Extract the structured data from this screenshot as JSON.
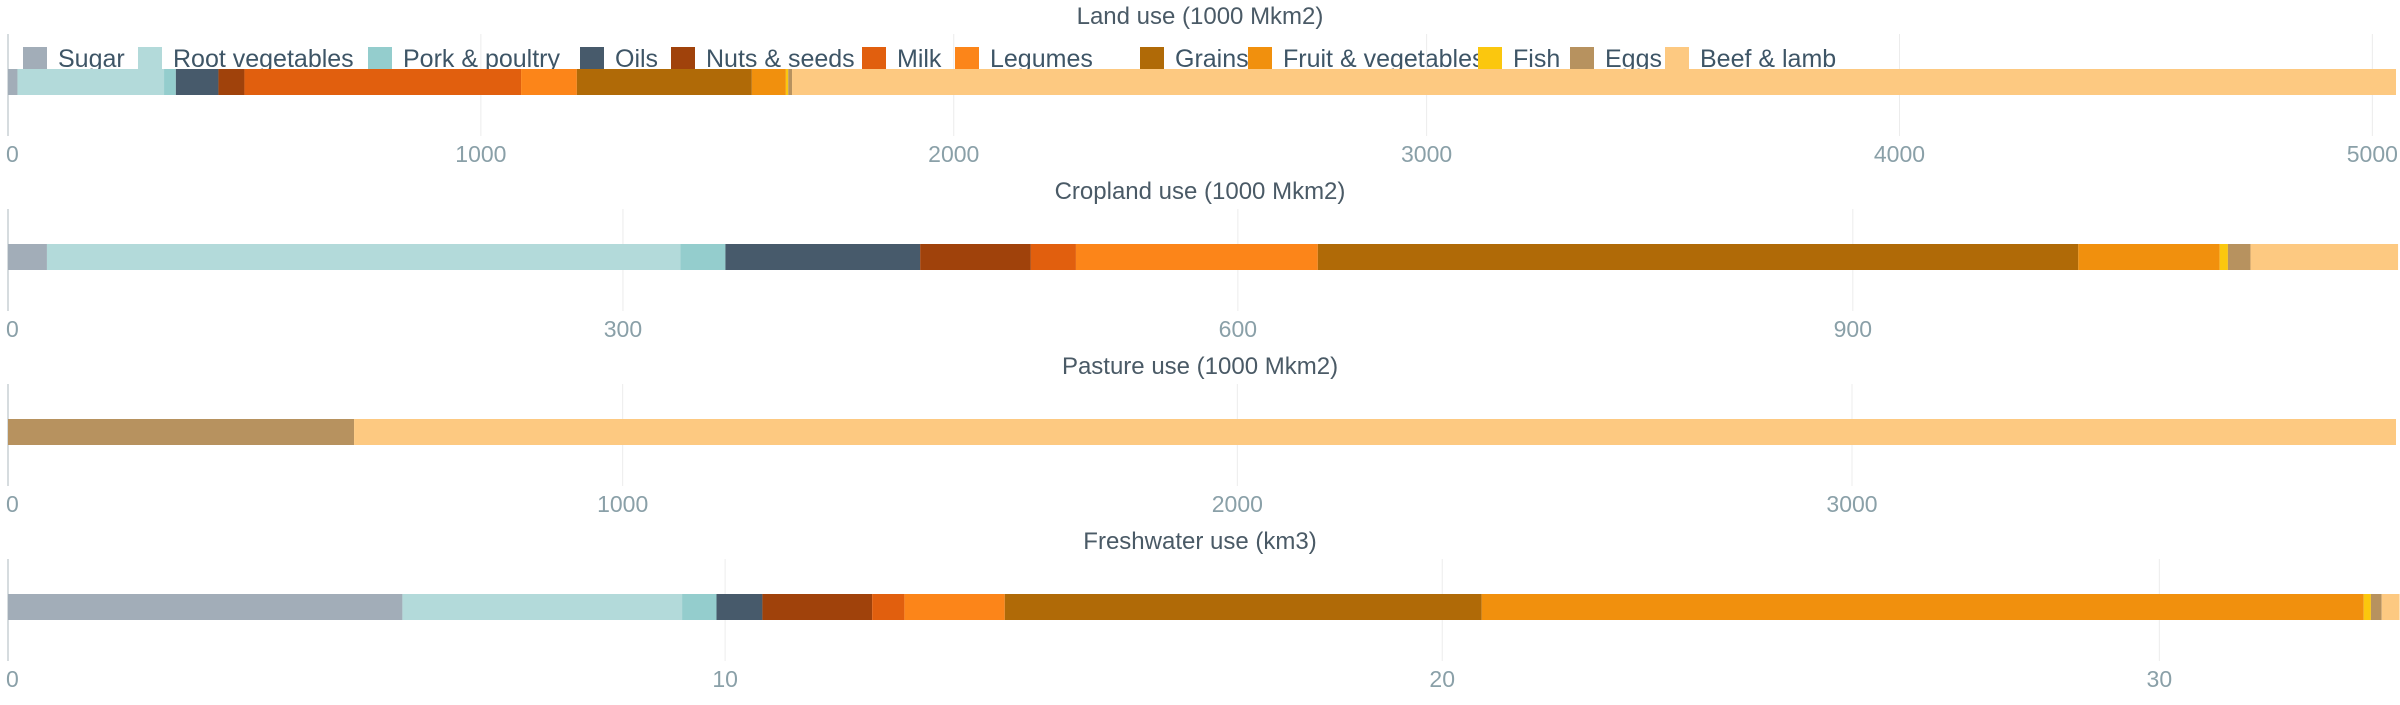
{
  "chart_data": {
    "type": "bar",
    "orientation": "horizontal",
    "stacked": true,
    "legend": {
      "placement": "top",
      "items": [
        {
          "name": "Sugar",
          "color": "#a2adb8"
        },
        {
          "name": "Root vegetables",
          "color": "#b3dada"
        },
        {
          "name": "Pork & poultry",
          "color": "#94cdcd"
        },
        {
          "name": "Oils",
          "color": "#475a6b"
        },
        {
          "name": "Nuts & seeds",
          "color": "#a0420b"
        },
        {
          "name": "Milk",
          "color": "#e15f0e"
        },
        {
          "name": "Legumes",
          "color": "#fc8519"
        },
        {
          "name": "Grains",
          "color": "#b06a07"
        },
        {
          "name": "Fruit & vegetables",
          "color": "#f1900d"
        },
        {
          "name": "Fish",
          "color": "#fbc70e"
        },
        {
          "name": "Eggs",
          "color": "#b7925f"
        },
        {
          "name": "Beef & lamb",
          "color": "#fdc981"
        }
      ]
    },
    "panels": [
      {
        "title": "Land use (1000 Mkm2)",
        "xlim": [
          0,
          5050
        ],
        "ticks": [
          0,
          1000,
          2000,
          3000,
          4000,
          5000
        ],
        "values": {
          "Sugar": 20,
          "Root vegetables": 310,
          "Pork & poultry": 25,
          "Oils": 90,
          "Nuts & seeds": 55,
          "Milk": 585,
          "Legumes": 118,
          "Grains": 370,
          "Fruit & vegetables": 72,
          "Fish": 5,
          "Eggs": 8,
          "Beef & lamb": 3392
        }
      },
      {
        "title": "Cropland use (1000 Mkm2)",
        "xlim": [
          0,
          1165
        ],
        "ticks": [
          0,
          300,
          600,
          900
        ],
        "values": {
          "Sugar": 19,
          "Root vegetables": 309,
          "Pork & poultry": 22,
          "Oils": 95,
          "Nuts & seeds": 54,
          "Milk": 22,
          "Legumes": 118,
          "Grains": 371,
          "Fruit & vegetables": 69,
          "Fish": 4,
          "Eggs": 11,
          "Beef & lamb": 72
        }
      },
      {
        "title": "Pasture use (1000 Mkm2)",
        "xlim": [
          0,
          3885
        ],
        "ticks": [
          0,
          1000,
          2000,
          3000
        ],
        "values": {
          "Sugar": 0,
          "Root vegetables": 0,
          "Pork & poultry": 0,
          "Oils": 0,
          "Nuts & seeds": 0,
          "Milk": 0,
          "Legumes": 0,
          "Grains": 0,
          "Fruit & vegetables": 0,
          "Fish": 0,
          "Eggs": 563,
          "Beef & lamb": 3322
        }
      },
      {
        "title": "Freshwater use (km3)",
        "xlim": [
          0,
          33.3
        ],
        "ticks": [
          0,
          10,
          20,
          30
        ],
        "values": {
          "Sugar": 5.5,
          "Root vegetables": 3.9,
          "Pork & poultry": 0.48,
          "Oils": 0.64,
          "Nuts & seeds": 1.53,
          "Milk": 0.45,
          "Legumes": 1.4,
          "Grains": 6.65,
          "Fruit & vegetables": 12.3,
          "Fish": 0.1,
          "Eggs": 0.15,
          "Beef & lamb": 0.25
        }
      }
    ]
  }
}
